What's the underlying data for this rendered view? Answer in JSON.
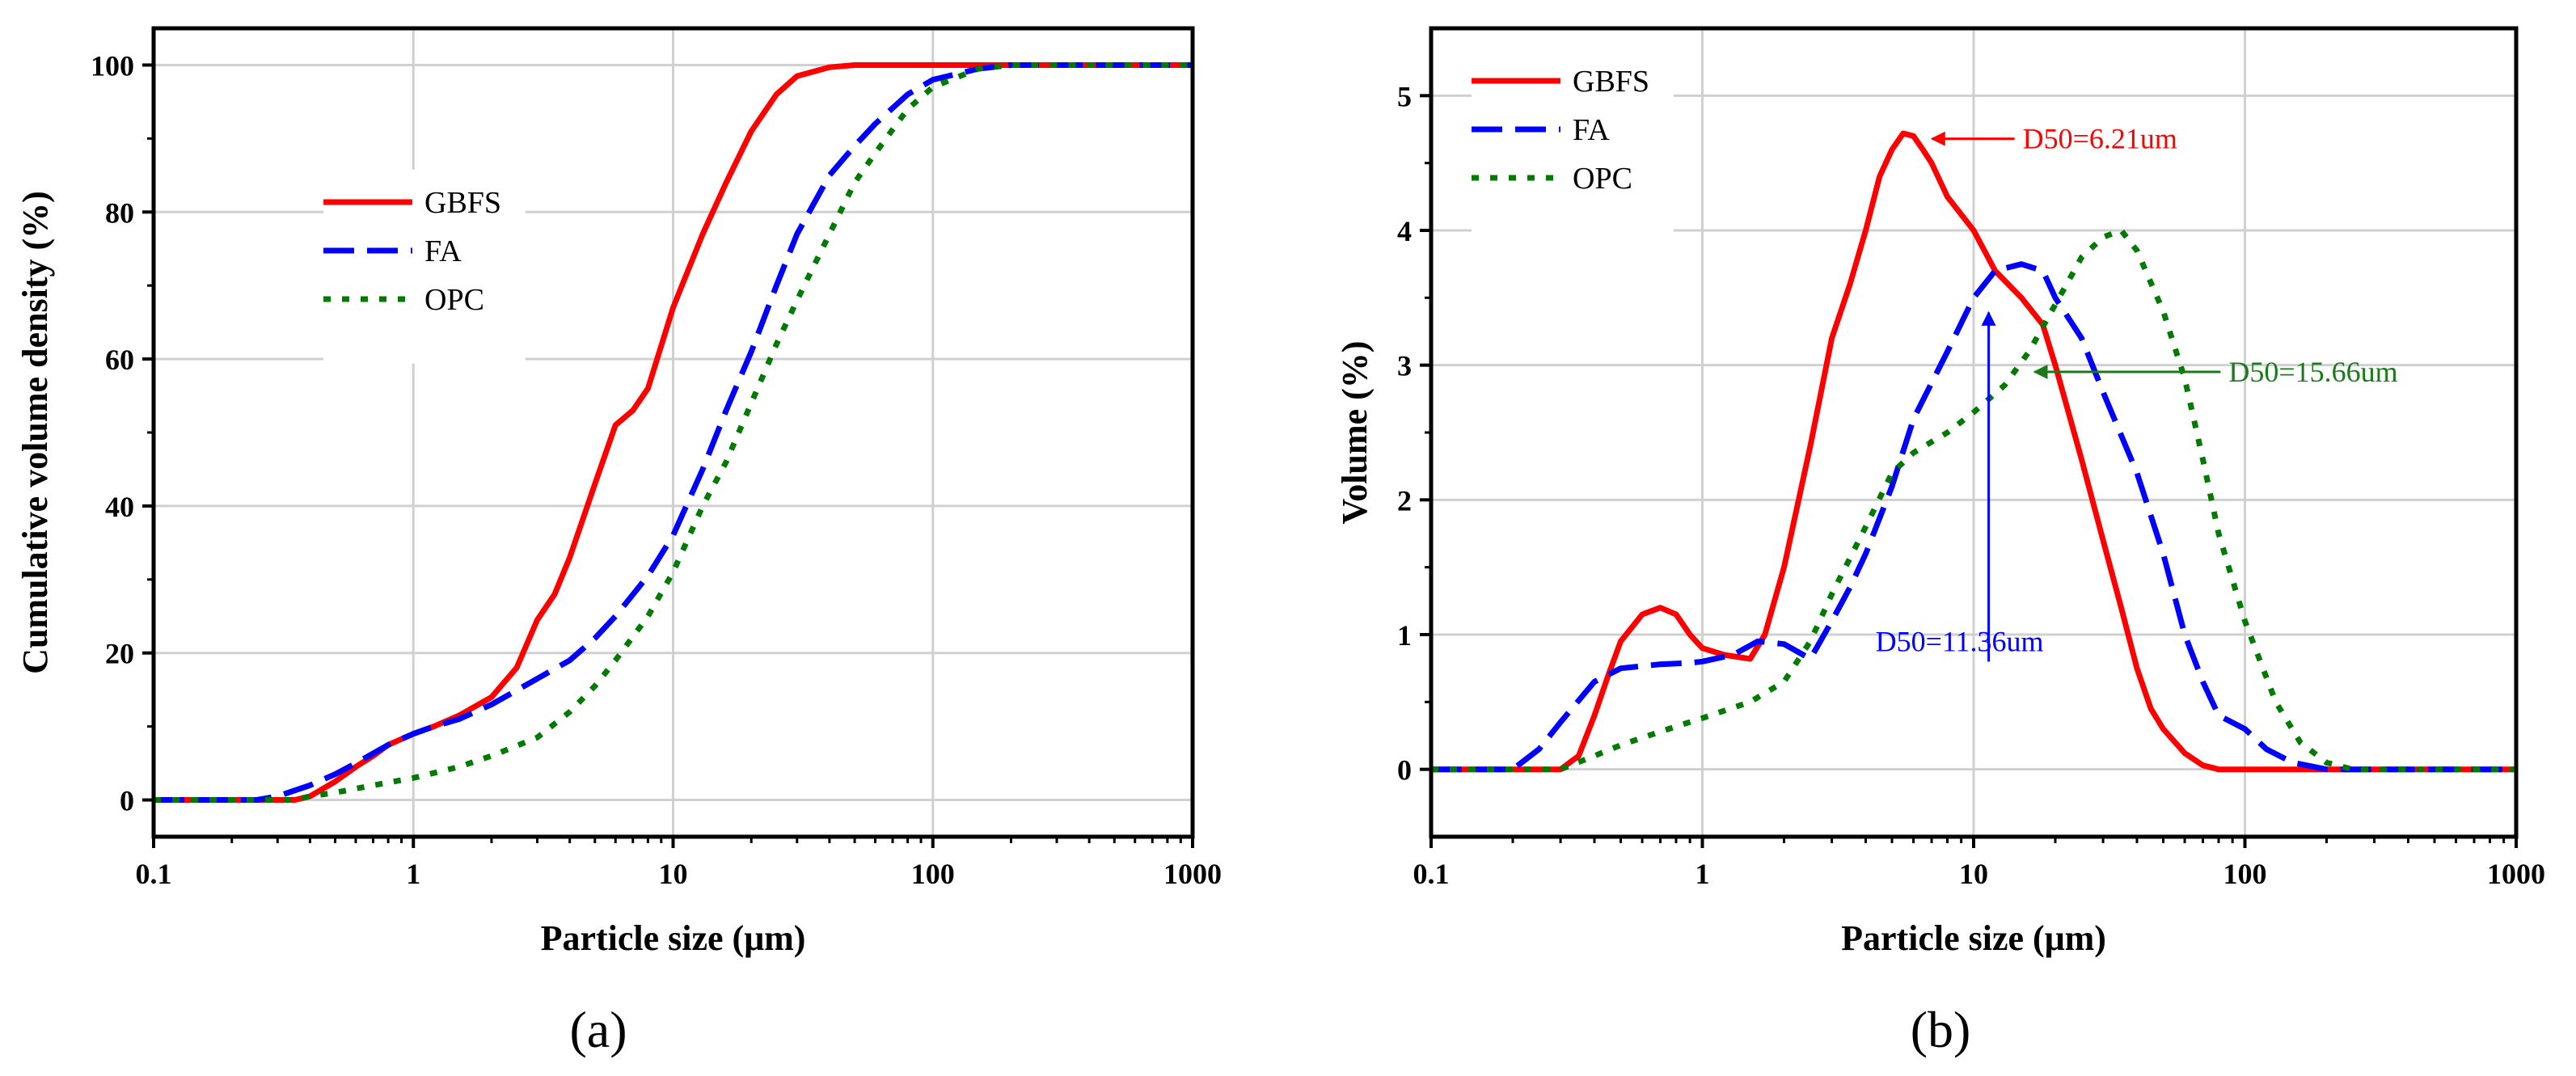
{
  "colors": {
    "gbfs": "#ff0000",
    "fa": "#0000ff",
    "opc": "#007a00",
    "annot_green": "#1a7a1a"
  },
  "chart_data": [
    {
      "type": "line",
      "panel_label": "(a)",
      "xlabel": "Particle size (μm)",
      "ylabel": "Cumulative volume density (%)",
      "xscale": "log",
      "xlim": [
        0.1,
        1000
      ],
      "ylim": [
        -5,
        105
      ],
      "xticks": [
        0.1,
        1,
        10,
        100,
        1000
      ],
      "xtick_labels": [
        "0.1",
        "1",
        "10",
        "100",
        "1000"
      ],
      "yticks": [
        0,
        20,
        40,
        60,
        80,
        100
      ],
      "ytick_labels": [
        "0",
        "20",
        "40",
        "60",
        "80",
        "100"
      ],
      "grid": true,
      "legend_position": "upper-left",
      "series": [
        {
          "name": "GBFS",
          "style": "solid",
          "x": [
            0.1,
            0.35,
            0.4,
            0.5,
            0.6,
            0.7,
            0.8,
            1,
            1.2,
            1.5,
            2,
            2.5,
            3,
            3.5,
            4,
            5,
            6,
            7,
            8,
            10,
            13,
            16,
            20,
            25,
            30,
            40,
            50,
            60,
            100,
            1000
          ],
          "y": [
            0,
            0,
            0.5,
            2.5,
            4.5,
            6,
            7.5,
            9,
            10,
            11.5,
            14,
            18,
            24.5,
            28,
            33,
            43,
            51,
            53,
            56,
            67,
            77,
            84,
            91,
            96,
            98.5,
            99.7,
            100,
            100,
            100,
            100
          ]
        },
        {
          "name": "FA",
          "style": "dashed",
          "x": [
            0.1,
            0.25,
            0.3,
            0.4,
            0.5,
            0.6,
            0.8,
            1,
            1.2,
            1.5,
            2,
            3,
            4,
            5,
            6,
            8,
            10,
            13,
            16,
            20,
            25,
            30,
            40,
            50,
            60,
            80,
            100,
            150,
            200,
            1000
          ],
          "y": [
            0,
            0,
            0.5,
            2,
            3.5,
            5,
            7.5,
            9,
            10,
            11,
            13,
            16.5,
            19,
            22,
            25,
            30.5,
            36,
            45,
            53,
            61,
            70,
            77,
            85,
            89,
            92,
            96,
            98,
            99.5,
            100,
            100
          ]
        },
        {
          "name": "OPC",
          "style": "dotted",
          "x": [
            0.1,
            0.35,
            0.4,
            0.5,
            0.7,
            1,
            1.5,
            2,
            3,
            4,
            5,
            6,
            8,
            10,
            13,
            16,
            20,
            25,
            30,
            40,
            50,
            60,
            80,
            100,
            150,
            200,
            1000
          ],
          "y": [
            0,
            0,
            0.5,
            1,
            2,
            3,
            4.5,
            6,
            8.5,
            12,
            15.5,
            19,
            25,
            31,
            40,
            46,
            54,
            62,
            68,
            77,
            84,
            88,
            94,
            97,
            99.5,
            100,
            100
          ]
        }
      ]
    },
    {
      "type": "line",
      "panel_label": "(b)",
      "xlabel": "Particle size (μm)",
      "ylabel": "Volume (%)",
      "xscale": "log",
      "xlim": [
        0.1,
        1000
      ],
      "ylim": [
        -0.5,
        5.5
      ],
      "xticks": [
        0.1,
        1,
        10,
        100,
        1000
      ],
      "xtick_labels": [
        "0.1",
        "1",
        "10",
        "100",
        "1000"
      ],
      "yticks": [
        0,
        1,
        2,
        3,
        4,
        5
      ],
      "ytick_labels": [
        "0",
        "1",
        "2",
        "3",
        "4",
        "5"
      ],
      "grid": true,
      "legend_position": "upper-left",
      "series": [
        {
          "name": "GBFS",
          "style": "solid",
          "x": [
            0.1,
            0.3,
            0.35,
            0.4,
            0.45,
            0.5,
            0.6,
            0.7,
            0.8,
            0.9,
            1,
            1.2,
            1.5,
            1.7,
            2,
            2.5,
            3,
            3.5,
            4,
            4.5,
            5,
            5.5,
            6,
            6.5,
            7,
            8,
            10,
            12,
            15,
            18,
            20,
            25,
            30,
            35,
            40,
            45,
            50,
            60,
            70,
            80,
            100,
            1000
          ],
          "y": [
            0,
            0,
            0.1,
            0.4,
            0.7,
            0.95,
            1.15,
            1.2,
            1.15,
            1.0,
            0.9,
            0.85,
            0.82,
            1.0,
            1.5,
            2.4,
            3.2,
            3.6,
            4.0,
            4.4,
            4.6,
            4.72,
            4.7,
            4.6,
            4.5,
            4.25,
            4.0,
            3.7,
            3.5,
            3.3,
            3.0,
            2.3,
            1.7,
            1.2,
            0.75,
            0.45,
            0.3,
            0.12,
            0.03,
            0,
            0,
            0
          ]
        },
        {
          "name": "FA",
          "style": "dashed",
          "x": [
            0.1,
            0.2,
            0.25,
            0.3,
            0.4,
            0.5,
            0.7,
            0.9,
            1,
            1.3,
            1.6,
            2,
            2.5,
            3,
            3.5,
            4,
            5,
            6,
            8,
            10,
            12,
            15,
            18,
            20,
            25,
            30,
            40,
            50,
            60,
            70,
            80,
            100,
            120,
            150,
            200,
            1000
          ],
          "y": [
            0,
            0,
            0.15,
            0.35,
            0.65,
            0.75,
            0.78,
            0.79,
            0.8,
            0.85,
            0.95,
            0.93,
            0.82,
            1.1,
            1.35,
            1.6,
            2.1,
            2.6,
            3.1,
            3.5,
            3.7,
            3.75,
            3.7,
            3.5,
            3.2,
            2.8,
            2.2,
            1.6,
            1.0,
            0.65,
            0.4,
            0.3,
            0.15,
            0.05,
            0,
            0
          ]
        },
        {
          "name": "OPC",
          "style": "dotted",
          "x": [
            0.1,
            0.3,
            0.4,
            0.5,
            0.7,
            1,
            1.5,
            2,
            2.5,
            3,
            4,
            5,
            6,
            8,
            10,
            13,
            16,
            20,
            25,
            30,
            35,
            40,
            50,
            60,
            70,
            80,
            100,
            130,
            160,
            200,
            250,
            1000
          ],
          "y": [
            0,
            0,
            0.1,
            0.18,
            0.28,
            0.38,
            0.5,
            0.65,
            0.95,
            1.3,
            1.8,
            2.2,
            2.35,
            2.5,
            2.65,
            2.85,
            3.1,
            3.45,
            3.8,
            3.95,
            4.0,
            3.85,
            3.4,
            2.9,
            2.3,
            1.75,
            1.1,
            0.5,
            0.2,
            0.05,
            0,
            0
          ]
        }
      ],
      "annotations": [
        {
          "text": "D50=6.21um",
          "x": 6.21,
          "y": 4.68,
          "color": "gbfs"
        },
        {
          "text": "D50=11.36um",
          "x": 11.36,
          "y": 3.45,
          "color": "fa"
        },
        {
          "text": "D50=15.66um",
          "x": 15.66,
          "y": 2.95,
          "color": "annot_green"
        }
      ]
    }
  ]
}
